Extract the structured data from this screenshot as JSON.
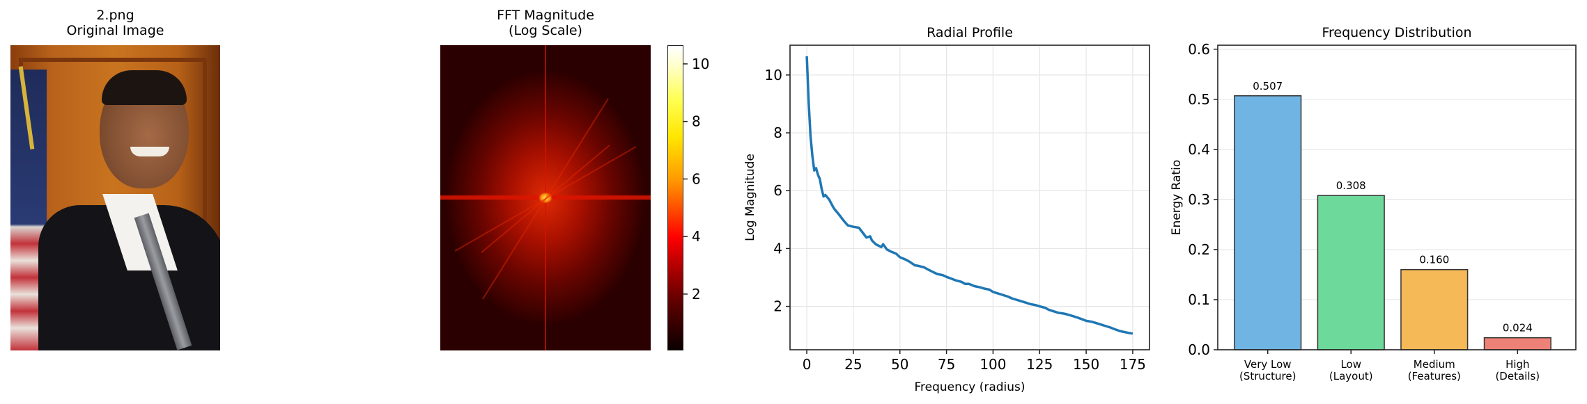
{
  "panels": {
    "original": {
      "title_line1": "2.png",
      "title_line2": "Original Image",
      "image_label": "portrait photo"
    },
    "fft": {
      "title_line1": "FFT Magnitude",
      "title_line2": "(Log Scale)",
      "colormap": "hot",
      "colorbar": {
        "range": [
          0.04,
          10.65
        ],
        "ticks": [
          2,
          4,
          6,
          8,
          10
        ],
        "tick_labels": [
          "2",
          "4",
          "6",
          "8",
          "10"
        ]
      }
    }
  },
  "chart_data": [
    {
      "type": "line",
      "title": "Radial Profile",
      "xlabel": "Frequency (radius)",
      "ylabel": "Log Magnitude",
      "xlim": [
        -9,
        184
      ],
      "ylim": [
        0.5,
        11.03
      ],
      "grid": true,
      "xticks": [
        0,
        25,
        50,
        75,
        100,
        125,
        150,
        175
      ],
      "xtick_labels": [
        "0",
        "25",
        "50",
        "75",
        "100",
        "125",
        "150",
        "175"
      ],
      "yticks": [
        2,
        4,
        6,
        8,
        10
      ],
      "ytick_labels": [
        "2",
        "4",
        "6",
        "8",
        "10"
      ],
      "series": [
        {
          "name": "radial profile",
          "color": "#1f77b4",
          "x": [
            0,
            1,
            2,
            3,
            4,
            5,
            6,
            7,
            8,
            9,
            10,
            12,
            14,
            15,
            17,
            20,
            22,
            25,
            28,
            30,
            32,
            34,
            35,
            37,
            40,
            41,
            43,
            45,
            48,
            50,
            53,
            55,
            58,
            60,
            63,
            65,
            68,
            70,
            73,
            75,
            78,
            80,
            83,
            85,
            87,
            90,
            93,
            95,
            98,
            100,
            103,
            105,
            108,
            110,
            113,
            115,
            118,
            120,
            123,
            125,
            128,
            130,
            133,
            135,
            138,
            140,
            143,
            145,
            148,
            150,
            153,
            155,
            158,
            160,
            163,
            165,
            168,
            170,
            173,
            175
          ],
          "y": [
            10.65,
            9.1,
            7.9,
            7.2,
            6.7,
            6.78,
            6.55,
            6.4,
            6.05,
            5.8,
            5.85,
            5.7,
            5.45,
            5.35,
            5.2,
            4.95,
            4.8,
            4.75,
            4.72,
            4.55,
            4.38,
            4.42,
            4.28,
            4.15,
            4.05,
            4.15,
            3.97,
            3.9,
            3.82,
            3.7,
            3.62,
            3.55,
            3.42,
            3.4,
            3.35,
            3.28,
            3.18,
            3.12,
            3.08,
            3.02,
            2.95,
            2.9,
            2.85,
            2.78,
            2.78,
            2.7,
            2.66,
            2.62,
            2.58,
            2.5,
            2.44,
            2.4,
            2.34,
            2.28,
            2.22,
            2.18,
            2.12,
            2.08,
            2.04,
            2.0,
            1.95,
            1.88,
            1.82,
            1.78,
            1.75,
            1.72,
            1.66,
            1.62,
            1.55,
            1.5,
            1.47,
            1.43,
            1.37,
            1.33,
            1.27,
            1.22,
            1.15,
            1.12,
            1.08,
            1.06
          ]
        }
      ]
    },
    {
      "type": "bar",
      "title": "Frequency Distribution",
      "xlabel": "",
      "ylabel": "Energy Ratio",
      "ylim": [
        0,
        0.608
      ],
      "xlim": [
        -0.6,
        3.7
      ],
      "grid": true,
      "categories": [
        "Very Low\n(Structure)",
        "Low\n(Layout)",
        "Medium\n(Features)",
        "High\n(Details)"
      ],
      "category_lines": [
        [
          "Very Low",
          "(Structure)"
        ],
        [
          "Low",
          "(Layout)"
        ],
        [
          "Medium",
          "(Features)"
        ],
        [
          "High",
          "(Details)"
        ]
      ],
      "values": [
        0.507,
        0.308,
        0.16,
        0.024
      ],
      "value_labels": [
        "0.507",
        "0.308",
        "0.160",
        "0.024"
      ],
      "colors": [
        "#6fb4e3",
        "#6dd99a",
        "#f5b957",
        "#ee8177"
      ],
      "edge_color": "#333333",
      "yticks": [
        0.0,
        0.1,
        0.2,
        0.3,
        0.4,
        0.5,
        0.6
      ],
      "ytick_labels": [
        "0.0",
        "0.1",
        "0.2",
        "0.3",
        "0.4",
        "0.5",
        "0.6"
      ]
    }
  ]
}
